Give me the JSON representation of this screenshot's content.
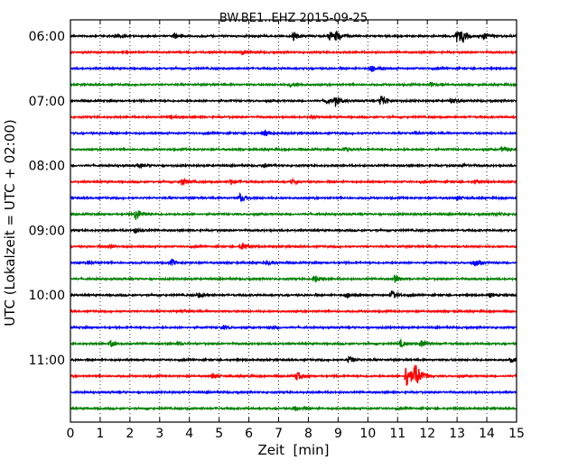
{
  "chart_data": {
    "type": "line",
    "title": "BW.BE1..EHZ 2015-09-25",
    "xlabel": "Zeit  [min]",
    "ylabel": "UTC (Lokalzeit = UTC + 02:00)",
    "xlim": [
      0,
      15
    ],
    "xticks": [
      "0",
      "1",
      "2",
      "3",
      "4",
      "5",
      "6",
      "7",
      "8",
      "9",
      "10",
      "11",
      "12",
      "13",
      "14",
      "15"
    ],
    "ytick_labels": [
      "06:00",
      "07:00",
      "08:00",
      "09:00",
      "10:00",
      "11:00"
    ],
    "grid": {
      "x": "dotted",
      "y": "none"
    },
    "trace_interval_min": 15,
    "series_colors": [
      "#000000",
      "#ff0000",
      "#0000ff",
      "#008000"
    ],
    "traces": [
      {
        "start": "06:00",
        "events": [
          [
            1.5,
            0.15
          ],
          [
            3.5,
            0.25
          ],
          [
            7.5,
            0.35
          ],
          [
            8.7,
            0.4
          ],
          [
            8.95,
            0.4
          ],
          [
            13.0,
            0.8
          ],
          [
            13.2,
            0.4
          ],
          [
            13.9,
            0.35
          ]
        ]
      },
      {
        "start": "06:15",
        "events": [
          [
            5.8,
            0.2
          ]
        ]
      },
      {
        "start": "06:30",
        "events": [
          [
            10.1,
            0.35
          ]
        ]
      },
      {
        "start": "06:45",
        "events": [
          [
            7.4,
            0.25
          ],
          [
            12.1,
            0.2
          ]
        ]
      },
      {
        "start": "07:00",
        "events": [
          [
            8.6,
            0.3
          ],
          [
            8.9,
            0.4
          ],
          [
            10.45,
            0.6
          ],
          [
            12.8,
            0.2
          ]
        ]
      },
      {
        "start": "07:15",
        "events": [
          [
            3.4,
            0.15
          ],
          [
            8.1,
            0.15
          ]
        ]
      },
      {
        "start": "07:30",
        "events": [
          [
            6.55,
            0.3
          ],
          [
            11.6,
            0.12
          ]
        ]
      },
      {
        "start": "07:45",
        "events": [
          [
            9.2,
            0.25
          ],
          [
            14.5,
            0.2
          ]
        ]
      },
      {
        "start": "08:00",
        "events": [
          [
            2.3,
            0.2
          ],
          [
            6.5,
            0.15
          ],
          [
            13.2,
            0.15
          ]
        ]
      },
      {
        "start": "08:15",
        "events": [
          [
            3.75,
            0.35
          ],
          [
            5.4,
            0.2
          ],
          [
            7.45,
            0.2
          ],
          [
            13.6,
            0.15
          ]
        ]
      },
      {
        "start": "08:30",
        "events": [
          [
            5.7,
            0.4
          ],
          [
            13.0,
            0.2
          ]
        ]
      },
      {
        "start": "08:45",
        "events": [
          [
            2.2,
            0.6
          ],
          [
            14.3,
            0.15
          ]
        ]
      },
      {
        "start": "09:00",
        "events": [
          [
            2.15,
            0.25
          ]
        ]
      },
      {
        "start": "09:15",
        "events": [
          [
            1.3,
            0.2
          ],
          [
            5.75,
            0.35
          ]
        ]
      },
      {
        "start": "09:30",
        "events": [
          [
            0.6,
            0.2
          ],
          [
            3.4,
            0.3
          ],
          [
            6.6,
            0.2
          ],
          [
            13.6,
            0.3
          ]
        ]
      },
      {
        "start": "09:45",
        "events": [
          [
            8.2,
            0.35
          ],
          [
            10.9,
            0.35
          ]
        ]
      },
      {
        "start": "10:00",
        "events": [
          [
            4.3,
            0.25
          ],
          [
            9.3,
            0.2
          ],
          [
            10.8,
            0.35
          ],
          [
            14.1,
            0.15
          ]
        ]
      },
      {
        "start": "10:15",
        "events": [
          [
            3.7,
            0.15
          ]
        ]
      },
      {
        "start": "10:30",
        "events": [
          [
            5.1,
            0.15
          ],
          [
            6.7,
            0.15
          ]
        ]
      },
      {
        "start": "10:45",
        "events": [
          [
            1.35,
            0.3
          ],
          [
            3.6,
            0.15
          ],
          [
            11.1,
            0.3
          ],
          [
            11.8,
            0.35
          ]
        ]
      },
      {
        "start": "11:00",
        "events": [
          [
            9.35,
            0.3
          ],
          [
            14.8,
            0.2
          ]
        ]
      },
      {
        "start": "11:15",
        "events": [
          [
            4.8,
            0.2
          ],
          [
            7.6,
            0.4
          ],
          [
            11.3,
            1.3
          ],
          [
            11.6,
            1.1
          ]
        ]
      },
      {
        "start": "11:30",
        "events": []
      },
      {
        "start": "11:45",
        "events": [
          [
            7.55,
            0.2
          ]
        ]
      }
    ]
  }
}
